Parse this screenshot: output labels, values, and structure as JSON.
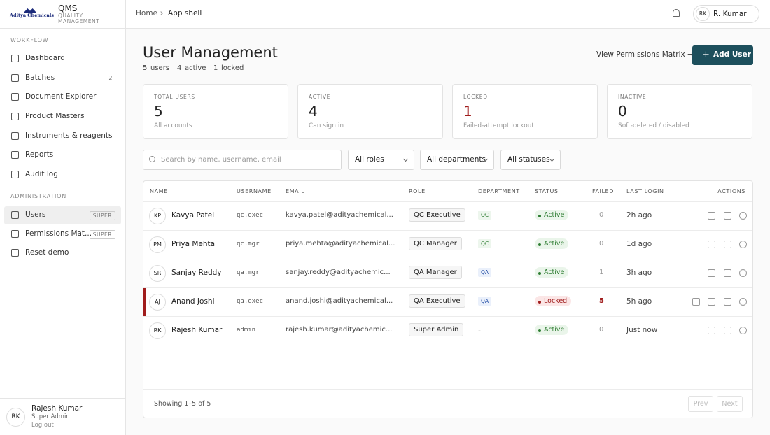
{
  "sidebar": {
    "brand": {
      "logo": "Aditya Chemicals",
      "name": "QMS",
      "tagline": "QUALITY MANAGEMENT"
    },
    "sections": [
      {
        "title": "WORKFLOW",
        "items": [
          {
            "label": "Dashboard"
          },
          {
            "label": "Batches",
            "badge": "2"
          },
          {
            "label": "Document Explorer"
          },
          {
            "label": "Product Masters"
          },
          {
            "label": "Instruments & reagents"
          },
          {
            "label": "Reports"
          },
          {
            "label": "Audit log"
          }
        ]
      },
      {
        "title": "ADMINISTRATION",
        "items": [
          {
            "label": "Users",
            "badge": "SUPER"
          },
          {
            "label": "Permissions Mat...",
            "badge": "SUPER"
          },
          {
            "label": "Reset demo"
          }
        ]
      }
    ],
    "user": {
      "initials": "RK",
      "name": "Rajesh Kumar",
      "role": "Super Admin",
      "logout": "Log out"
    }
  },
  "topbar": {
    "breadcrumb": [
      "Home",
      "App shell"
    ],
    "user": {
      "initials": "RK",
      "name": "R. Kumar"
    }
  },
  "header": {
    "title": "User Management",
    "summary": [
      {
        "value": "5",
        "label": "users"
      },
      {
        "value": "4",
        "label": "active"
      },
      {
        "value": "1",
        "label": "locked"
      }
    ],
    "link": "View Permissions Matrix →",
    "button": "Add User"
  },
  "stats": [
    {
      "label": "TOTAL USERS",
      "value": "5",
      "note": "All accounts"
    },
    {
      "label": "ACTIVE",
      "value": "4",
      "note": "Can sign in"
    },
    {
      "label": "LOCKED",
      "value": "1",
      "note": "Failed-attempt lockout"
    },
    {
      "label": "INACTIVE",
      "value": "0",
      "note": "Soft-deleted / disabled"
    }
  ],
  "filters": {
    "search": "Search by name, username, email",
    "selects": [
      "All roles",
      "All departments",
      "All statuses"
    ]
  },
  "table": {
    "columns": [
      "NAME",
      "USERNAME",
      "EMAIL",
      "ROLE",
      "DEPARTMENT",
      "STATUS",
      "FAILED",
      "LAST LOGIN",
      "ACTIONS"
    ],
    "rows": [
      [
        "KP",
        "Kavya Patel",
        "qc.exec",
        "kavya.patel@adityachemical...",
        "QC Executive",
        "QC",
        "Active",
        "0",
        "2h ago"
      ],
      [
        "PM",
        "Priya Mehta",
        "qc.mgr",
        "priya.mehta@adityachemical...",
        "QC Manager",
        "QC",
        "Active",
        "0",
        "1d ago"
      ],
      [
        "SR",
        "Sanjay Reddy",
        "qa.mgr",
        "sanjay.reddy@adityachemic...",
        "QA Manager",
        "QA",
        "Active",
        "1",
        "3h ago"
      ],
      [
        "AJ",
        "Anand Joshi",
        "qa.exec",
        "anand.joshi@adityachemical...",
        "QA Executive",
        "QA",
        "Locked",
        "5",
        "5h ago"
      ],
      [
        "RK",
        "Rajesh Kumar",
        "admin",
        "rajesh.kumar@adityachemic...",
        "Super Admin",
        "-",
        "Active",
        "0",
        "Just now"
      ]
    ],
    "footer": {
      "showing": "Showing 1–5 of 5",
      "prev": "Prev",
      "next": "Next"
    }
  }
}
